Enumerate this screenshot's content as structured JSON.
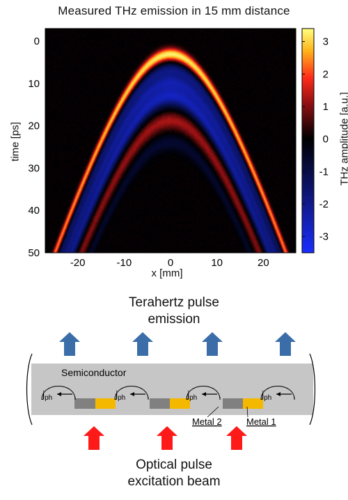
{
  "chart_data": {
    "type": "heatmap",
    "title": "Measured THz emission in 15 mm distance",
    "xlabel": "x [mm]",
    "ylabel": "time [ps]",
    "xlim": [
      -27,
      27
    ],
    "ylim": [
      -3,
      50
    ],
    "y_inverted": true,
    "xticks": [
      "-20",
      "-10",
      "0",
      "10",
      "20"
    ],
    "xtick_values": [
      -20,
      -10,
      0,
      10,
      20
    ],
    "yticks": [
      "0",
      "10",
      "20",
      "30",
      "40",
      "50"
    ],
    "ytick_values": [
      0,
      10,
      20,
      30,
      40,
      50
    ],
    "colorbar": {
      "label": "THz amplitude [a.u.]",
      "range": [
        -3.5,
        3.4
      ],
      "ticks": [
        "3",
        "2",
        "1",
        "0",
        "-1",
        "-2",
        "-3"
      ],
      "tick_values": [
        3,
        2,
        1,
        0,
        -1,
        -2,
        -3
      ],
      "colors": [
        "#1a2dff",
        "#0f1a8a",
        "#000000",
        "#8a0f12",
        "#ff2a1a",
        "#ffb21a",
        "#ffff80"
      ]
    },
    "colormap": "blue-black-red-yellow",
    "features": [
      {
        "shape": "hyperbola",
        "apex_t_ps": 3.0,
        "apex_sign": "positive",
        "peak_amplitude": 3.3
      },
      {
        "shape": "hyperbola",
        "apex_t_ps": 8.0,
        "apex_sign": "negative",
        "peak_amplitude": -2.0
      },
      {
        "shape": "hyperbola",
        "apex_t_ps": 13.0,
        "apex_sign": "negative",
        "peak_amplitude": -2.5
      },
      {
        "shape": "hyperbola",
        "apex_t_ps": 19.0,
        "apex_sign": "positive",
        "peak_amplitude": 1.2
      }
    ]
  },
  "diagram": {
    "heading_top": [
      "Terahertz pulse",
      "emission"
    ],
    "heading_bottom": [
      "Optical pulse",
      "excitation beam"
    ],
    "semiconductor_label": "Semiconductor",
    "current_label_main": "j",
    "current_label_sub": "ph",
    "metal2_label": "Metal 2",
    "metal1_label": "Metal 1",
    "colors": {
      "thz_arrow": "#3b6ea8",
      "optical_arrow": "#ff1a1a",
      "semiconductor": "#c6c6c6",
      "metal1": "#f5b800",
      "metal2": "#808080"
    }
  }
}
